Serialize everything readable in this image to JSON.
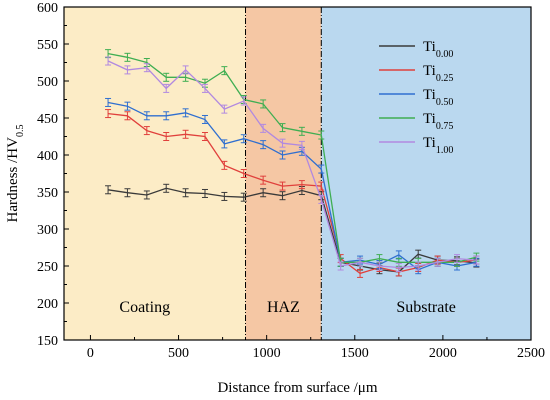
{
  "chart_data": {
    "type": "line",
    "xlabel": "Distance from surface /μm",
    "ylabel": "Hardness /HV",
    "ylabel_sub": "0.5",
    "xlim": [
      -150,
      2500
    ],
    "ylim": [
      150,
      600
    ],
    "xticks": [
      0,
      500,
      1000,
      1500,
      2000,
      2500
    ],
    "yticks": [
      150,
      200,
      250,
      300,
      350,
      400,
      450,
      500,
      550,
      600
    ],
    "regions": [
      {
        "label": "Coating",
        "x0": -150,
        "x1": 880,
        "color": "#fcecc6"
      },
      {
        "label": "HAZ",
        "x0": 880,
        "x1": 1310,
        "color": "#f5c7a4"
      },
      {
        "label": "Substrate",
        "x0": 1310,
        "x1": 2500,
        "color": "#bad8ef"
      }
    ],
    "boundaries": [
      880,
      1310
    ],
    "x": [
      100,
      210,
      320,
      430,
      540,
      650,
      760,
      870,
      980,
      1090,
      1200,
      1310,
      1420,
      1530,
      1640,
      1750,
      1860,
      1970,
      2080,
      2190
    ],
    "series": [
      {
        "name": "Ti",
        "sub": "0.00",
        "color": "#3a3a3a",
        "values": [
          353,
          349,
          346,
          355,
          349,
          348,
          344,
          343,
          349,
          345,
          352,
          345,
          255,
          250,
          245,
          242,
          266,
          258,
          257,
          254
        ]
      },
      {
        "name": "Ti",
        "sub": "0.25",
        "color": "#e0403c",
        "values": [
          456,
          453,
          433,
          425,
          428,
          425,
          386,
          375,
          366,
          358,
          360,
          358,
          260,
          240,
          248,
          242,
          248,
          258,
          255,
          258
        ]
      },
      {
        "name": "Ti",
        "sub": "0.50",
        "color": "#2f6fd0",
        "values": [
          471,
          466,
          453,
          453,
          457,
          448,
          415,
          422,
          414,
          400,
          405,
          381,
          255,
          258,
          252,
          265,
          245,
          255,
          250,
          255
        ]
      },
      {
        "name": "Ti",
        "sub": "0.75",
        "color": "#3fae52",
        "values": [
          537,
          532,
          525,
          505,
          505,
          497,
          514,
          475,
          469,
          437,
          432,
          427,
          255,
          255,
          260,
          255,
          255,
          255,
          255,
          262
        ]
      },
      {
        "name": "Ti",
        "sub": "1.00",
        "color": "#b189e0",
        "values": [
          527,
          515,
          518,
          490,
          515,
          490,
          462,
          473,
          436,
          416,
          413,
          340,
          250,
          255,
          250,
          248,
          250,
          255,
          260,
          258
        ]
      }
    ]
  }
}
